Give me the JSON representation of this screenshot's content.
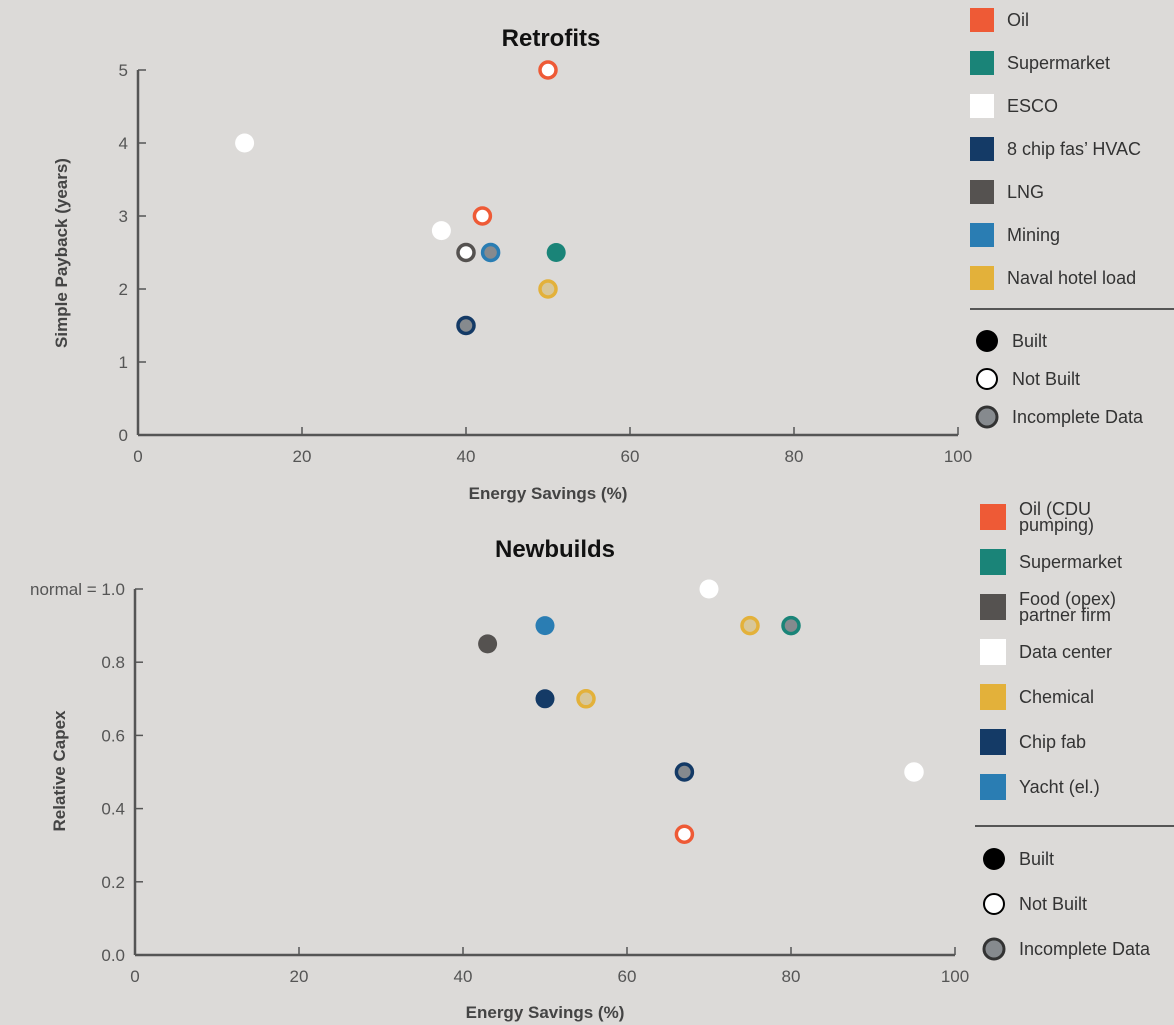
{
  "palette": {
    "orange": "#ee5a36",
    "teal": "#1a8478",
    "white": "#ffffff",
    "navy": "#143a66",
    "darkgray": "#555250",
    "blue": "#2a7db3",
    "gold": "#e3b13a",
    "incomplete_fill": "#868a8e",
    "axis": "#555555"
  },
  "chart_data": [
    {
      "type": "scatter",
      "title": "Retrofits",
      "xlabel": "Energy Savings (%)",
      "ylabel": "Simple Payback (years)",
      "xlim": [
        0,
        100
      ],
      "ylim": [
        0,
        5
      ],
      "xticks": [
        "0",
        "20",
        "40",
        "60",
        "80",
        "100"
      ],
      "yticks": [
        "0",
        "1",
        "2",
        "3",
        "4",
        "5"
      ],
      "ytick_prefix": "",
      "grid": false,
      "legend_position": "right",
      "categories": [
        {
          "name": "Oil",
          "color": "#ee5a36"
        },
        {
          "name": "Supermarket",
          "color": "#1a8478"
        },
        {
          "name": "ESCO",
          "color": "#ffffff"
        },
        {
          "name": "8 chip fas’ HVAC",
          "color": "#143a66"
        },
        {
          "name": "LNG",
          "color": "#555250"
        },
        {
          "name": "Mining",
          "color": "#2a7db3"
        },
        {
          "name": "Naval hotel load",
          "color": "#e3b13a"
        }
      ],
      "status_legend": [
        "Built",
        "Not Built",
        "Incomplete Data"
      ],
      "points": [
        {
          "x": 13,
          "y": 4.0,
          "category": "ESCO",
          "status": "built"
        },
        {
          "x": 37,
          "y": 2.8,
          "category": "ESCO",
          "status": "built"
        },
        {
          "x": 40,
          "y": 2.5,
          "category": "LNG",
          "status": "not_built"
        },
        {
          "x": 40,
          "y": 1.5,
          "category": "8 chip fas’ HVAC",
          "status": "incomplete"
        },
        {
          "x": 42,
          "y": 3.0,
          "category": "Oil",
          "status": "not_built"
        },
        {
          "x": 43,
          "y": 2.5,
          "category": "Mining",
          "status": "incomplete"
        },
        {
          "x": 50,
          "y": 5.0,
          "category": "Oil",
          "status": "not_built"
        },
        {
          "x": 50,
          "y": 2.0,
          "category": "Naval hotel load",
          "status": "incomplete_gold"
        },
        {
          "x": 51,
          "y": 2.5,
          "category": "Supermarket",
          "status": "built"
        }
      ]
    },
    {
      "type": "scatter",
      "title": "Newbuilds",
      "xlabel": "Energy Savings (%)",
      "ylabel": "Relative Capex",
      "xlim": [
        0,
        100
      ],
      "ylim": [
        0,
        1.0
      ],
      "xticks": [
        "0",
        "20",
        "40",
        "60",
        "80",
        "100"
      ],
      "yticks": [
        "0.0",
        "0.2",
        "0.4",
        "0.6",
        "0.8",
        "1.0"
      ],
      "ytick_prefix": "normal = ",
      "grid": false,
      "legend_position": "right",
      "categories": [
        {
          "name": "Oil (CDU pumping)",
          "lines": [
            "Oil (CDU",
            "pumping)"
          ],
          "color": "#ee5a36"
        },
        {
          "name": "Supermarket",
          "lines": [
            "Supermarket"
          ],
          "color": "#1a8478"
        },
        {
          "name": "Food (opex) partner firm",
          "lines": [
            "Food (opex)",
            "partner firm"
          ],
          "color": "#555250"
        },
        {
          "name": "Data center",
          "lines": [
            "Data center"
          ],
          "color": "#ffffff"
        },
        {
          "name": "Chemical",
          "lines": [
            "Chemical"
          ],
          "color": "#e3b13a"
        },
        {
          "name": "Chip fab",
          "lines": [
            "Chip fab"
          ],
          "color": "#143a66"
        },
        {
          "name": "Yacht (el.)",
          "lines": [
            "Yacht (el.)"
          ],
          "color": "#2a7db3"
        }
      ],
      "status_legend": [
        "Built",
        "Not Built",
        "Incomplete Data"
      ],
      "points": [
        {
          "x": 43,
          "y": 0.85,
          "category": "Food (opex) partner firm",
          "status": "built"
        },
        {
          "x": 50,
          "y": 0.9,
          "category": "Yacht (el.)",
          "status": "built"
        },
        {
          "x": 50,
          "y": 0.7,
          "category": "Chip fab",
          "status": "built"
        },
        {
          "x": 55,
          "y": 0.7,
          "category": "Chemical",
          "status": "incomplete_gold"
        },
        {
          "x": 67,
          "y": 0.5,
          "category": "Chip fab",
          "status": "incomplete"
        },
        {
          "x": 67,
          "y": 0.33,
          "category": "Oil (CDU pumping)",
          "status": "not_built"
        },
        {
          "x": 70,
          "y": 1.0,
          "category": "Data center",
          "status": "built"
        },
        {
          "x": 75,
          "y": 0.9,
          "category": "Chemical",
          "status": "incomplete_gold"
        },
        {
          "x": 80,
          "y": 0.9,
          "category": "Supermarket",
          "status": "incomplete"
        },
        {
          "x": 95,
          "y": 0.5,
          "category": "Data center",
          "status": "not_built"
        }
      ]
    }
  ]
}
